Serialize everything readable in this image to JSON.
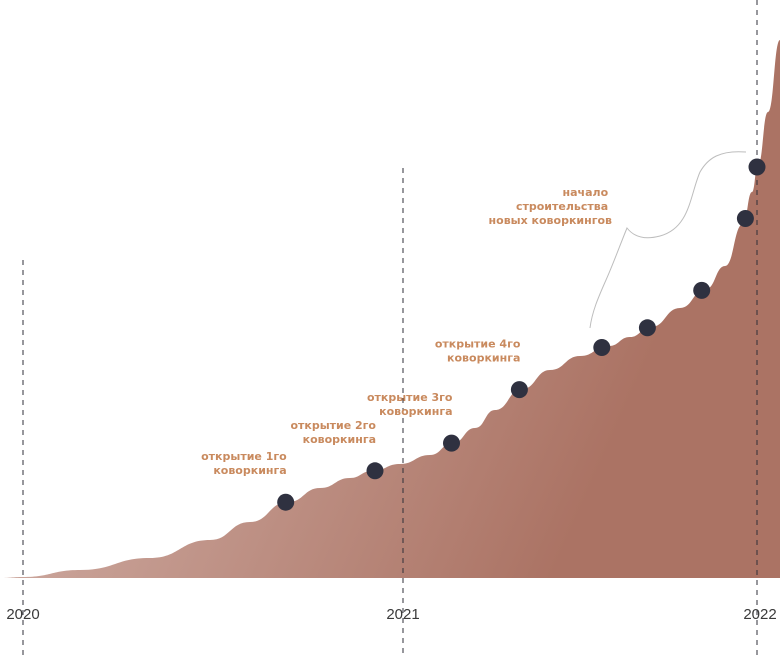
{
  "chart_data": {
    "type": "area",
    "title": "",
    "xlabel": "",
    "ylabel": "",
    "x_ticks": [
      "2020",
      "2021",
      "2022"
    ],
    "xlim": [
      "2020-01-01",
      "2022-01-15"
    ],
    "area_fill": [
      "#cfaca3",
      "#ab7364"
    ],
    "marker_color": "#2f3140",
    "annotation_color": "#c98a5e",
    "markers": [
      {
        "date": "2020-09-10",
        "label": [
          "открытие 1го",
          "коворкинга"
        ]
      },
      {
        "date": "2020-12-05",
        "label": [
          "открытие 2го",
          "коворкинга"
        ]
      },
      {
        "date": "2021-02-20",
        "label": [
          "открытие 3го",
          "коворкинга"
        ]
      },
      {
        "date": "2021-05-01",
        "label": [
          "открытие 4го",
          "коворкинга"
        ]
      },
      {
        "date": "2021-07-25",
        "label": []
      },
      {
        "date": "2021-09-10",
        "label": []
      },
      {
        "date": "2021-11-05",
        "label": []
      },
      {
        "date": "2021-12-20",
        "label": []
      },
      {
        "date": "2022-01-01",
        "label": []
      }
    ],
    "bracket_annotation": [
      "начало",
      "строительства",
      "новых коворкингов"
    ]
  }
}
